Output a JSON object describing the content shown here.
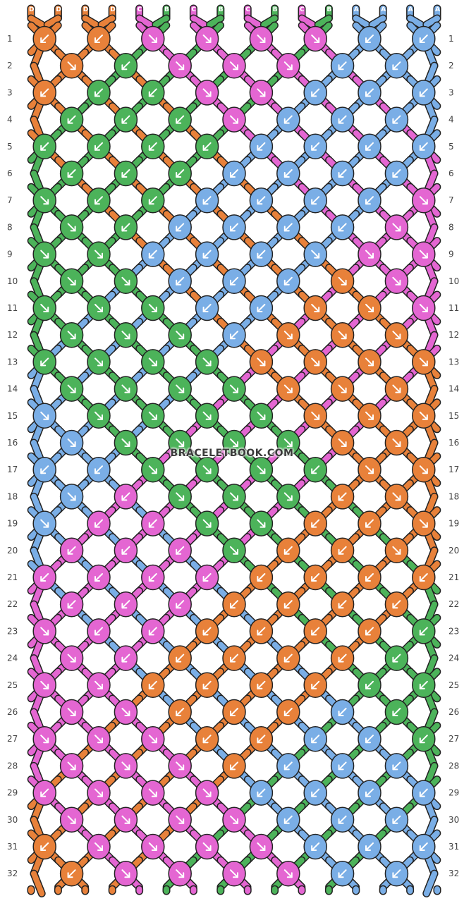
{
  "watermark": "BRACELETBOOK.COM",
  "colors": {
    "A": "#7aaee6",
    "B": "#4cb35a",
    "C": "#e466d2",
    "D": "#e8813a"
  },
  "strings_top": [
    "D",
    "D",
    "D",
    "D",
    "C",
    "B",
    "C",
    "B",
    "C",
    "B",
    "C",
    "B",
    "A",
    "A",
    "A",
    "A"
  ],
  "strings_bottom": [
    "D",
    "D",
    "D",
    "D",
    "C",
    "B",
    "C",
    "B",
    "C",
    "B",
    "C",
    "B",
    "A",
    "A",
    "A",
    "A"
  ],
  "row_labels": [
    "1",
    "2",
    "3",
    "4",
    "5",
    "6",
    "7",
    "8",
    "9",
    "10",
    "11",
    "12",
    "13",
    "14",
    "15",
    "16",
    "17",
    "18",
    "19",
    "20",
    "21",
    "22",
    "23",
    "24",
    "25",
    "26",
    "27",
    "28",
    "29",
    "30",
    "31",
    "32"
  ],
  "rows": [
    "D:L D:L C:R C:R C:R C:R A:L A:L",
    "D:R B:L C:R C:R C:R A:L A:L",
    "D:L B:L B:L C:R C:R A:L A:L A:L",
    "B:L B:L B:L C:R A:L A:L A:L",
    "B:L B:L B:L B:L A:L A:L A:L A:L",
    "B:L B:L B:L A:L A:L A:L A:L",
    "B:R B:L B:L A:L A:L A:L A:L C:R",
    "B:R B:L A:L A:L A:L A:L C:R",
    "B:R B:R A:L A:L A:L A:R C:R C:R",
    "B:R B:R A:L A:L A:L D:R C:R",
    "B:R B:R B:R A:L A:L D:R D:R C:R",
    "B:R B:R B:R A:L D:R D:R D:R",
    "B:L B:R B:R B:R D:R D:R D:R D:R",
    "B:R B:R B:R B:R D:R D:R D:R",
    "A:R B:R B:R B:R B:R D:R D:R D:R",
    "A:R B:R B:R B:R B:R D:R D:R",
    "A:L A:L B:R B:R B:R B:L D:R D:R",
    "A:R C:L B:R B:R B:R D:L D:R",
    "A:R C:L C:L B:R B:R D:L D:L D:R",
    "C:L C:L C:L B:R D:L D:L D:R",
    "C:L C:L C:L C:L D:L D:L D:L D:L",
    "C:L C:L C:L D:L D:L D:L D:L",
    "C:R C:L C:L D:L D:L D:L D:L B:L",
    "C:R C:L D:L D:L D:L D:L B:L",
    "C:R C:R D:L D:L D:L D:L B:L B:L",
    "C:R C:R D:L D:L D:L A:L B:L",
    "C:R C:R C:R D:L D:L A:L A:L B:L",
    "C:R C:R C:R D:L A:L A:L A:L",
    "C:L C:R C:R C:R A:L A:L A:L A:L",
    "C:R C:R C:R C:R A:L A:L A:L",
    "D:L C:R C:R C:R C:R A:L A:L A:L",
    "D:L C:R C:R C:R C:R A:L A:L"
  ]
}
